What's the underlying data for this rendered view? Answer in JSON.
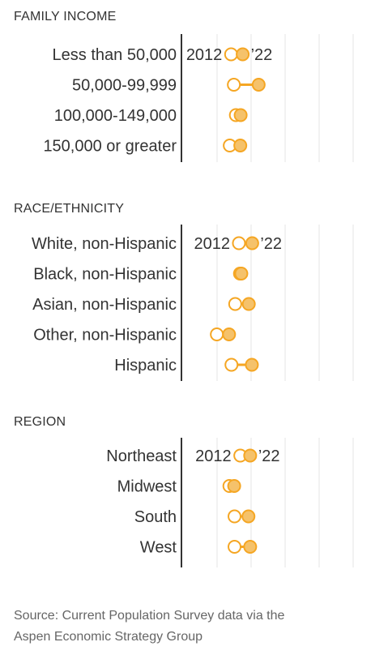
{
  "colors": {
    "accent": "#f5a623",
    "accent_fill": "#f5c26b",
    "grid": "#e6e6e6",
    "axis": "#333333",
    "text": "#333333",
    "source_text": "#666666"
  },
  "source": {
    "line1": "Source: Current Population Survey data via the",
    "line2": "Aspen Economic Strategy Group"
  },
  "chart_data": [
    {
      "type": "dot-range",
      "title": "FAMILY INCOME",
      "start_label": "2012",
      "end_label": "’22",
      "categories": [
        "Less than 50,000",
        "50,000-99,999",
        "100,000-149,000",
        "150,000 or greater"
      ],
      "series": [
        {
          "name": "2012",
          "values": [
            1.46,
            1.54,
            1.6,
            1.42
          ]
        },
        {
          "name": "’22",
          "values": [
            1.8,
            2.27,
            1.74,
            1.73
          ]
        }
      ],
      "gridlines": 5
    },
    {
      "type": "dot-range",
      "title": "RACE/ETHNICITY",
      "start_label": "2012",
      "end_label": "’22",
      "categories": [
        "White, non-Hispanic",
        "Black, non-Hispanic",
        "Asian, non-Hispanic",
        "Other, non-Hispanic",
        "Hispanic"
      ],
      "series": [
        {
          "name": "2012",
          "values": [
            1.69,
            1.72,
            1.58,
            1.04,
            1.47
          ]
        },
        {
          "name": "’22",
          "values": [
            2.08,
            1.76,
            1.98,
            1.4,
            2.07
          ]
        }
      ],
      "gridlines": 5
    },
    {
      "type": "dot-range",
      "title": "REGION",
      "start_label": "2012",
      "end_label": "’22",
      "categories": [
        "Northeast",
        "Midwest",
        "South",
        "West"
      ],
      "series": [
        {
          "name": "2012",
          "values": [
            1.73,
            1.41,
            1.56,
            1.56
          ]
        },
        {
          "name": "’22",
          "values": [
            2.02,
            1.55,
            1.97,
            2.02
          ]
        }
      ],
      "gridlines": 5
    }
  ]
}
